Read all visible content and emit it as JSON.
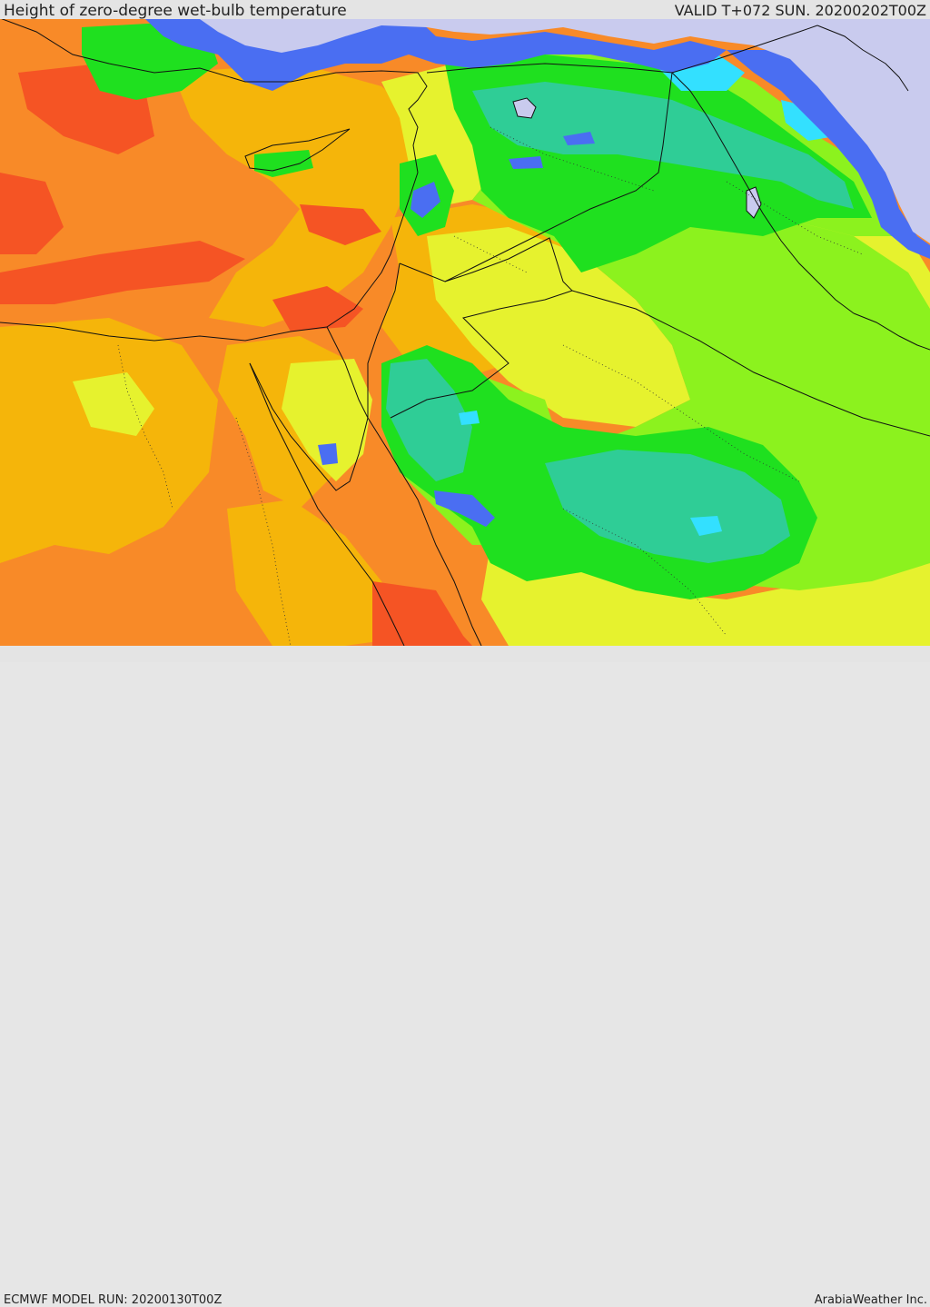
{
  "header": {
    "title": "Height of zero-degree wet-bulb temperature",
    "valid": "VALID T+072 SUN. 20200202T00Z"
  },
  "footer": {
    "model_run": "ECMWF MODEL RUN: 20200130T00Z",
    "credit": "ArabiaWeather Inc."
  },
  "palette": {
    "lavender": "#c9cbee",
    "blue": "#4a6ef2",
    "cyan": "#33e0ff",
    "teal": "#2fcd96",
    "green": "#1fe01f",
    "lime": "#8cf21e",
    "yellow": "#e6f22e",
    "amber": "#f5b50a",
    "orange": "#f88a28",
    "red": "#f55424"
  }
}
